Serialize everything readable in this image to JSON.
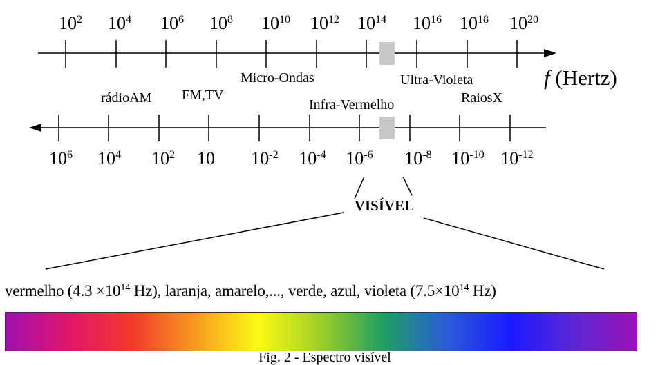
{
  "frequency_axis": {
    "label_symbol": "f",
    "label_unit": "(Hertz)",
    "ticks": [
      {
        "base": "10",
        "exp": "2"
      },
      {
        "base": "10",
        "exp": "4"
      },
      {
        "base": "10",
        "exp": "6"
      },
      {
        "base": "10",
        "exp": "8"
      },
      {
        "base": "10",
        "exp": "10"
      },
      {
        "base": "10",
        "exp": "12"
      },
      {
        "base": "10",
        "exp": "14"
      },
      {
        "base": "10",
        "exp": "16"
      },
      {
        "base": "10",
        "exp": "18"
      },
      {
        "base": "10",
        "exp": "20"
      }
    ]
  },
  "wavelength_axis": {
    "ticks": [
      {
        "base": "10",
        "exp": "6"
      },
      {
        "base": "10",
        "exp": "4"
      },
      {
        "base": "10",
        "exp": "2"
      },
      {
        "base": "10",
        "exp": ""
      },
      {
        "base": "10",
        "exp": "-2"
      },
      {
        "base": "10",
        "exp": "-4"
      },
      {
        "base": "10",
        "exp": "-6"
      },
      {
        "base": "10",
        "exp": "-8"
      },
      {
        "base": "10",
        "exp": "-10"
      },
      {
        "base": "10",
        "exp": "-12"
      }
    ]
  },
  "bands": {
    "micro_ondas": "Micro-Ondas",
    "ultra_violeta": "Ultra-Violeta",
    "radio_am": "rádioAM",
    "fm_tv": "FM,TV",
    "infra_vermelho": "Infra-Vermelho",
    "raios_x": "RaiosX"
  },
  "visible": {
    "label": "VISÍVEL",
    "range_start": "vermelho (4.3 ×10",
    "range_start_exp": "14",
    "range_middle": " Hz), laranja, amarelo,..., verde, azul, violeta (7.5×10",
    "range_end_exp": "14",
    "range_end": " Hz)"
  },
  "caption": "Fig. 2 - Espectro visível",
  "colors": {
    "axis": "#000000",
    "visible_marker": "#c8c8c8",
    "spectrum": [
      "#a10fb0",
      "#e0166a",
      "#f23a2a",
      "#f79a1e",
      "#fbfb14",
      "#9ccf26",
      "#1e9e66",
      "#2a5cd8",
      "#1a1aff",
      "#5c26d6",
      "#9b12b8"
    ]
  }
}
